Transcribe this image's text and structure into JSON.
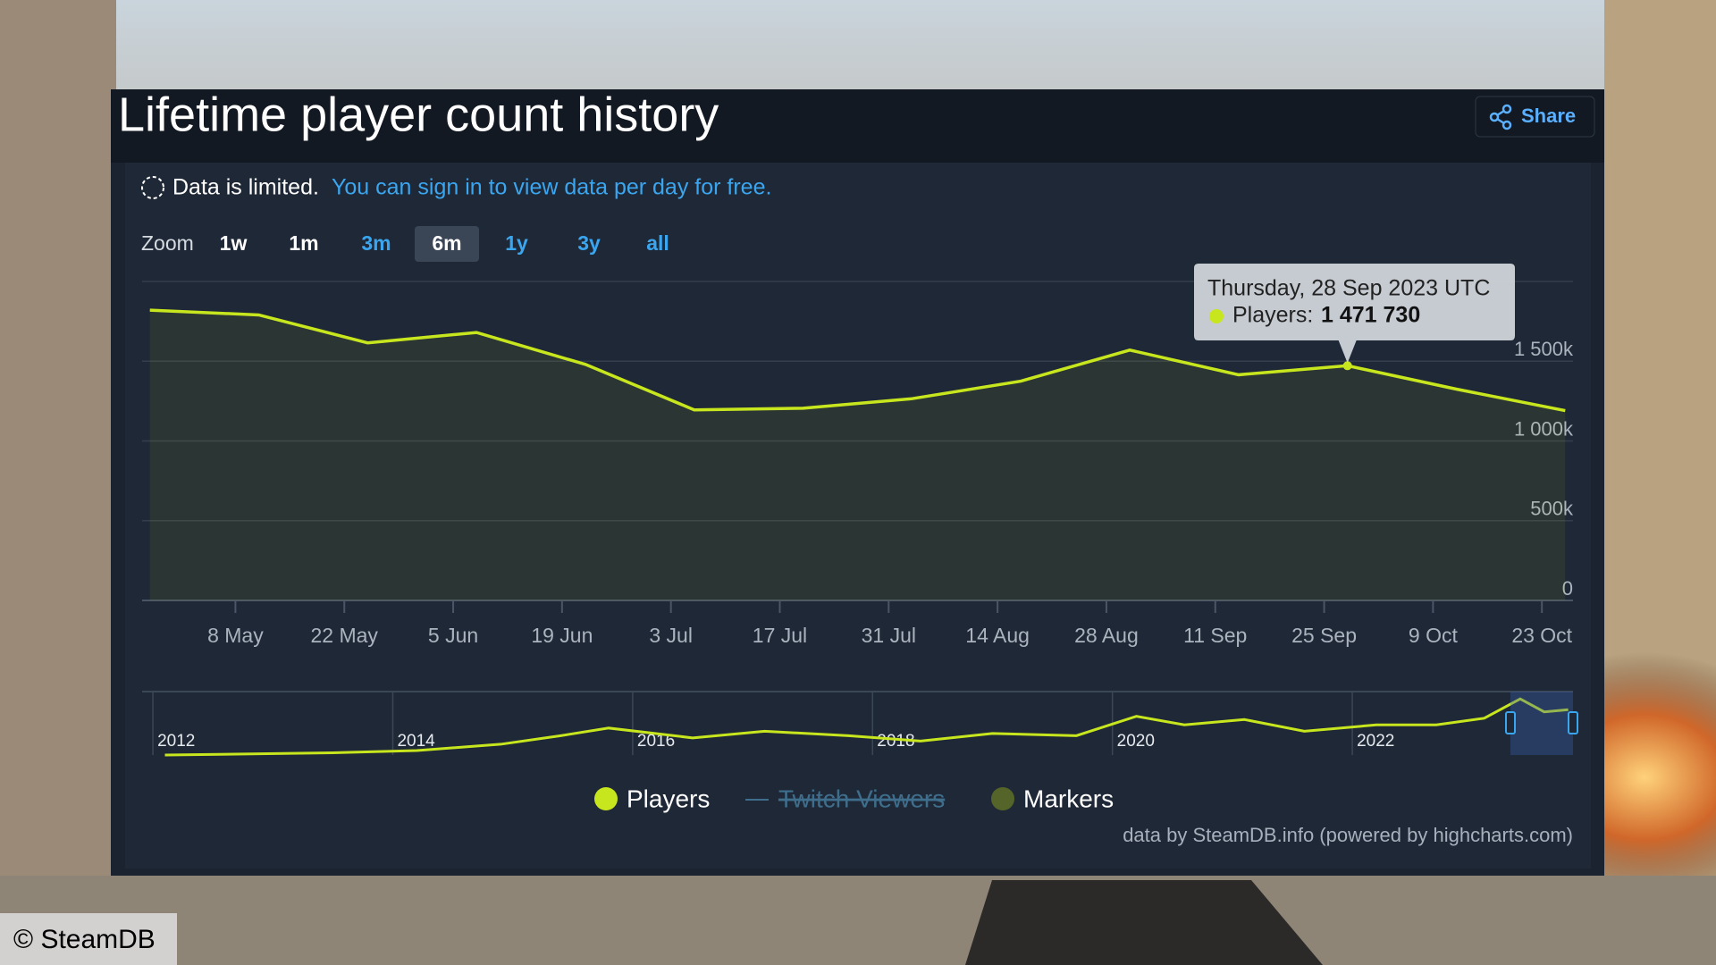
{
  "header": {
    "title": "Lifetime player count history",
    "share": "Share"
  },
  "notice": {
    "text": "Data is limited.",
    "link": "You can sign in to view data per day for free."
  },
  "zoom": {
    "label": "Zoom",
    "buttons": [
      "1w",
      "1m",
      "3m",
      "6m",
      "1y",
      "3y",
      "all"
    ],
    "selected": 3,
    "disabled": [
      0,
      1
    ]
  },
  "credits": "data by SteamDB.info (powered by highcharts.com)",
  "watermark": "© SteamDB",
  "chart_data": {
    "type": "area",
    "x": [
      "2023-04-27",
      "2023-05-11",
      "2023-05-25",
      "2023-06-08",
      "2023-06-22",
      "2023-07-06",
      "2023-07-20",
      "2023-08-03",
      "2023-08-17",
      "2023-08-31",
      "2023-09-14",
      "2023-09-28",
      "2023-10-12",
      "2023-10-26"
    ],
    "series": [
      {
        "name": "Players",
        "color": "#c8e61e",
        "values": [
          1820000,
          1790000,
          1615000,
          1680000,
          1480000,
          1195000,
          1205000,
          1265000,
          1375000,
          1570000,
          1415000,
          1471730,
          1325000,
          1190000
        ]
      },
      {
        "name": "Twitch Viewers",
        "color": "#3f6e8c",
        "visible": false
      },
      {
        "name": "Markers",
        "color": "#55652a"
      }
    ],
    "xlim": [
      "2023-04-26",
      "2023-10-27"
    ],
    "xticks": [
      {
        "value": "2023-05-08",
        "label": "8 May"
      },
      {
        "value": "2023-05-22",
        "label": "22 May"
      },
      {
        "value": "2023-06-05",
        "label": "5 Jun"
      },
      {
        "value": "2023-06-19",
        "label": "19 Jun"
      },
      {
        "value": "2023-07-03",
        "label": "3 Jul"
      },
      {
        "value": "2023-07-17",
        "label": "17 Jul"
      },
      {
        "value": "2023-07-31",
        "label": "31 Jul"
      },
      {
        "value": "2023-08-14",
        "label": "14 Aug"
      },
      {
        "value": "2023-08-28",
        "label": "28 Aug"
      },
      {
        "value": "2023-09-11",
        "label": "11 Sep"
      },
      {
        "value": "2023-09-25",
        "label": "25 Sep"
      },
      {
        "value": "2023-10-09",
        "label": "9 Oct"
      },
      {
        "value": "2023-10-23",
        "label": "23 Oct"
      }
    ],
    "ylim": [
      0,
      2000000
    ],
    "yticks": [
      0,
      {
        "value": 500000,
        "label": "500k"
      },
      {
        "value": 1000000,
        "label": "1 000k"
      },
      {
        "value": 1500000,
        "label": "1 500k"
      }
    ],
    "grid": true,
    "tooltip": {
      "header": "Thursday, 28 Sep 2023 UTC",
      "label": "Players:",
      "index": 11,
      "value_label": "1 471 730"
    },
    "navigator": {
      "x": [
        2012.1,
        2013.5,
        2014.2,
        2014.9,
        2015.4,
        2015.8,
        2016.5,
        2017.1,
        2017.8,
        2018.4,
        2019.0,
        2019.7,
        2020.2,
        2020.6,
        2021.1,
        2021.6,
        2022.2,
        2022.7,
        2023.1,
        2023.4,
        2023.6,
        2023.8
      ],
      "values": [
        0,
        70000,
        140000,
        340000,
        610000,
        850000,
        540000,
        750000,
        610000,
        440000,
        680000,
        610000,
        1220000,
        950000,
        1120000,
        750000,
        950000,
        950000,
        1160000,
        1770000,
        1360000,
        1430000
      ],
      "xlim": [
        2011.91,
        2023.84
      ],
      "xticks": [
        2012,
        2014,
        2016,
        2018,
        2020,
        2022
      ],
      "ylim": [
        0,
        2000000
      ]
    }
  }
}
